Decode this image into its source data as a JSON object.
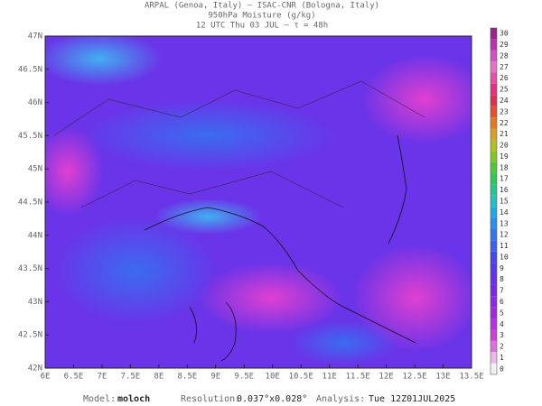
{
  "header": {
    "line1": "ARPAL (Genoa, Italy)  —  ISAC-CNR (Bologna, Italy)",
    "line2": "950hPa Moisture (g/kg)",
    "line3": "12 UTC Thu 03 JUL  –  τ = 48h"
  },
  "axes": {
    "lon": [
      "6E",
      "6.5E",
      "7E",
      "7.5E",
      "8E",
      "8.5E",
      "9E",
      "9.5E",
      "10E",
      "10.5E",
      "11E",
      "11.5E",
      "12E",
      "12.5E",
      "13E",
      "13.5E"
    ],
    "lat": [
      "42N",
      "42.5N",
      "43N",
      "43.5N",
      "44N",
      "44.5N",
      "45N",
      "45.5N",
      "46N",
      "46.5N",
      "47N"
    ]
  },
  "colorbar": {
    "ticks": [
      0,
      1,
      2,
      3,
      4,
      5,
      6,
      7,
      8,
      9,
      10,
      11,
      12,
      13,
      14,
      15,
      16,
      17,
      18,
      19,
      20,
      21,
      22,
      23,
      24,
      25,
      26,
      27,
      28,
      29,
      30
    ],
    "colors": [
      "#f0f0f0",
      "#e8b8e8",
      "#e070e0",
      "#d040d8",
      "#b830e0",
      "#a028e0",
      "#8c28e8",
      "#7828ec",
      "#6a30ee",
      "#5a38f0",
      "#4848f0",
      "#3c60f0",
      "#3078f0",
      "#2890f0",
      "#20a8e8",
      "#20c0c8",
      "#20c890",
      "#30c858",
      "#50c830",
      "#80c820",
      "#b0c020",
      "#d8a020",
      "#e87820",
      "#e85030",
      "#e03050",
      "#e83080",
      "#e850a8",
      "#e870c8",
      "#d850c8",
      "#c030b0",
      "#a02090"
    ]
  },
  "footer": {
    "model_label": "Model:",
    "model": "moloch",
    "resolution_label": "Resolution:",
    "resolution": "0.037°x0.028°",
    "analysis_label": "Analysis:",
    "analysis": "Tue 12Z01JUL2025"
  }
}
